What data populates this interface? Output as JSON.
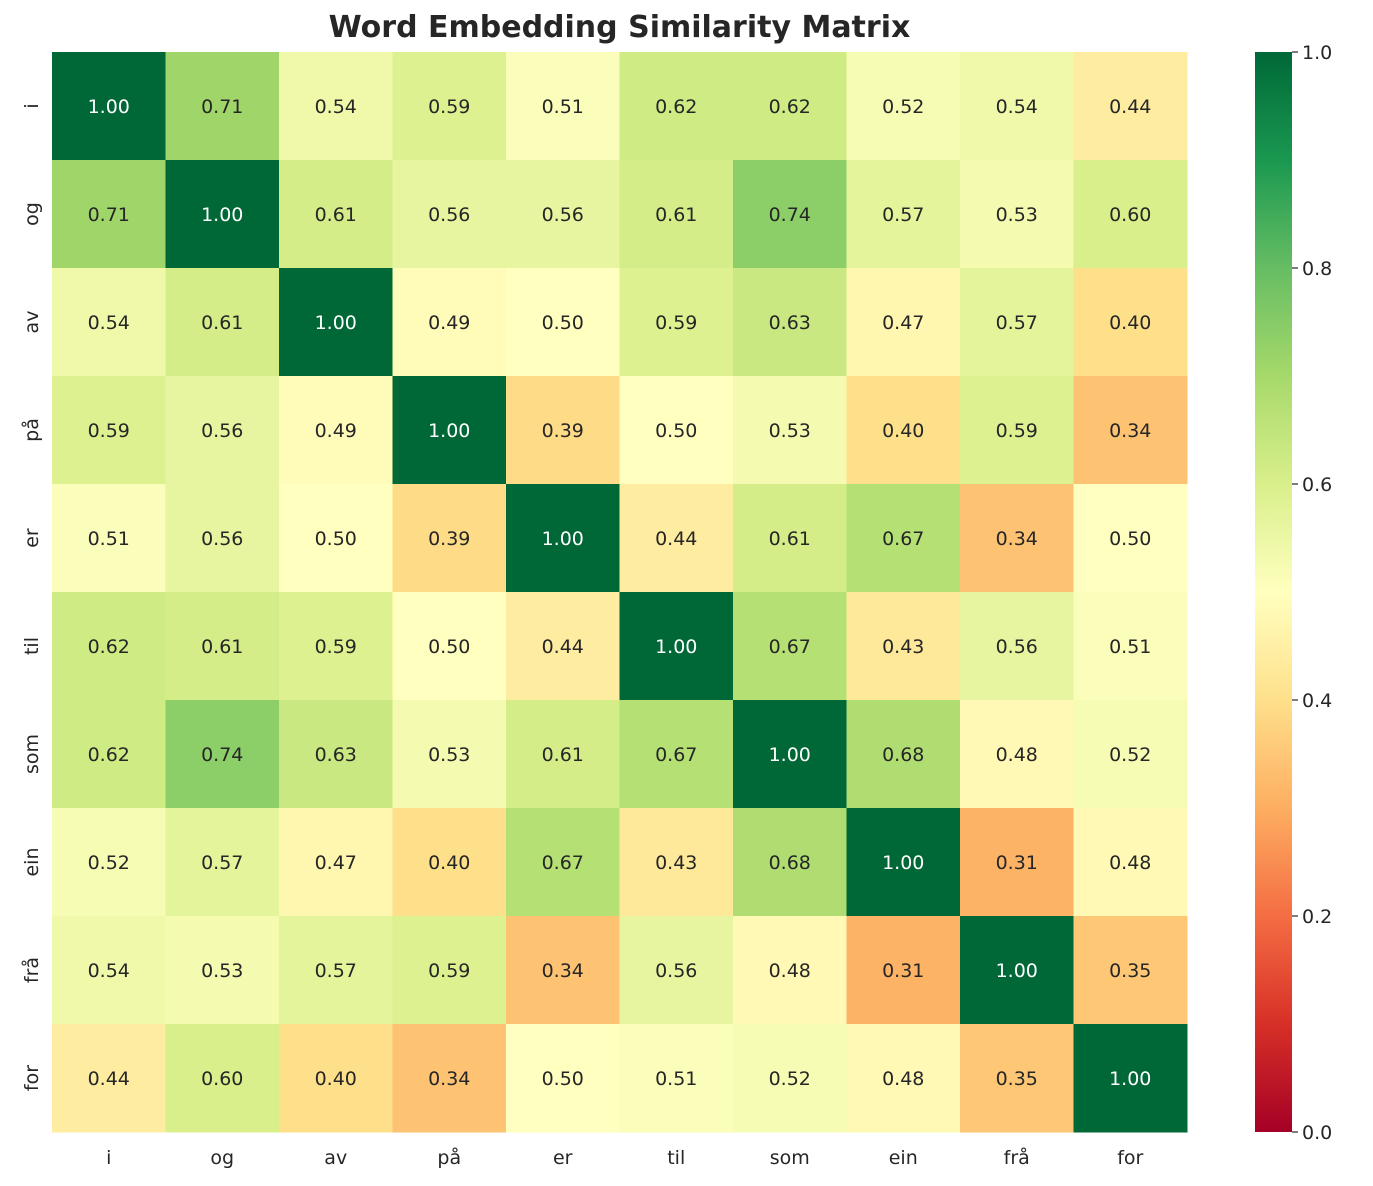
{
  "chart_data": {
    "type": "heatmap",
    "title": "Word Embedding Similarity Matrix",
    "xlabel": "",
    "ylabel": "",
    "colormap": "RdYlGn",
    "vmin": 0.0,
    "vmax": 1.0,
    "colorbar_ticks": [
      "0.0",
      "0.2",
      "0.4",
      "0.6",
      "0.8",
      "1.0"
    ],
    "x_labels": [
      "i",
      "og",
      "av",
      "på",
      "er",
      "til",
      "som",
      "ein",
      "frå",
      "for"
    ],
    "y_labels": [
      "i",
      "og",
      "av",
      "på",
      "er",
      "til",
      "som",
      "ein",
      "frå",
      "for"
    ],
    "values": [
      [
        1.0,
        0.71,
        0.54,
        0.59,
        0.51,
        0.62,
        0.62,
        0.52,
        0.54,
        0.44
      ],
      [
        0.71,
        1.0,
        0.61,
        0.56,
        0.56,
        0.61,
        0.74,
        0.57,
        0.53,
        0.6
      ],
      [
        0.54,
        0.61,
        1.0,
        0.49,
        0.5,
        0.59,
        0.63,
        0.47,
        0.57,
        0.4
      ],
      [
        0.59,
        0.56,
        0.49,
        1.0,
        0.39,
        0.5,
        0.53,
        0.4,
        0.59,
        0.34
      ],
      [
        0.51,
        0.56,
        0.5,
        0.39,
        1.0,
        0.44,
        0.61,
        0.67,
        0.34,
        0.5
      ],
      [
        0.62,
        0.61,
        0.59,
        0.5,
        0.44,
        1.0,
        0.67,
        0.43,
        0.56,
        0.51
      ],
      [
        0.62,
        0.74,
        0.63,
        0.53,
        0.61,
        0.67,
        1.0,
        0.68,
        0.48,
        0.52
      ],
      [
        0.52,
        0.57,
        0.47,
        0.4,
        0.67,
        0.43,
        0.68,
        1.0,
        0.31,
        0.48
      ],
      [
        0.54,
        0.53,
        0.57,
        0.59,
        0.34,
        0.56,
        0.48,
        0.31,
        1.0,
        0.35
      ],
      [
        0.44,
        0.6,
        0.4,
        0.34,
        0.5,
        0.51,
        0.52,
        0.48,
        0.35,
        1.0
      ]
    ],
    "annotation_format": "0.00",
    "grid": false
  }
}
